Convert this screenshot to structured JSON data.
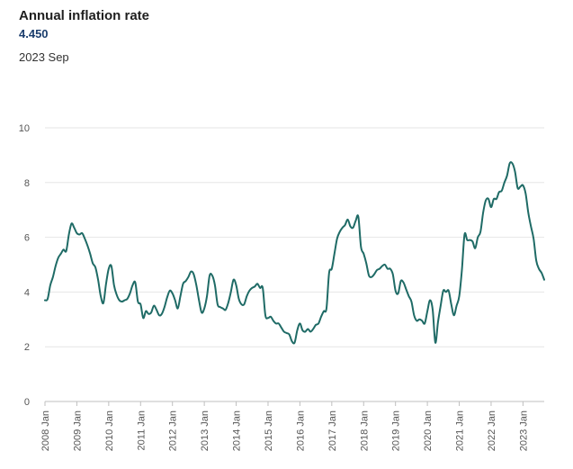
{
  "header": {
    "title": "Annual inflation rate",
    "value": "4.450",
    "date": "2023 Sep"
  },
  "colors": {
    "line": "#1f6b66",
    "grid": "#e6e6e6",
    "axis": "#bfbfbf"
  },
  "chart_data": {
    "type": "line",
    "title": "Annual inflation rate",
    "xlabel": "",
    "ylabel": "",
    "ylim": [
      0,
      10
    ],
    "yticks": [
      0,
      2,
      4,
      6,
      8,
      10
    ],
    "xticks": [
      "2008 Jan",
      "2009 Jan",
      "2010 Jan",
      "2011 Jan",
      "2012 Jan",
      "2013 Jan",
      "2014 Jan",
      "2015 Jan",
      "2016 Jan",
      "2017 Jan",
      "2018 Jan",
      "2019 Jan",
      "2020 Jan",
      "2021 Jan",
      "2022 Jan",
      "2023 Jan"
    ],
    "grid": true,
    "x_start": "2008 Jan",
    "x_end": "2023 Sep",
    "series": [
      {
        "values": [
          3.7,
          3.75,
          4.25,
          4.55,
          4.95,
          5.25,
          5.4,
          5.55,
          5.5,
          6.1,
          6.5,
          6.35,
          6.15,
          6.1,
          6.15,
          5.95,
          5.7,
          5.4,
          5.05,
          4.9,
          4.45,
          3.85,
          3.6,
          4.3,
          4.85,
          4.95,
          4.25,
          3.9,
          3.7,
          3.65,
          3.7,
          3.75,
          3.95,
          4.25,
          4.35,
          3.65,
          3.55,
          3.05,
          3.3,
          3.2,
          3.25,
          3.5,
          3.35,
          3.15,
          3.2,
          3.45,
          3.8,
          4.05,
          3.95,
          3.7,
          3.4,
          3.85,
          4.3,
          4.4,
          4.55,
          4.75,
          4.65,
          4.25,
          3.7,
          3.25,
          3.4,
          3.85,
          4.6,
          4.6,
          4.25,
          3.55,
          3.45,
          3.4,
          3.35,
          3.6,
          4.0,
          4.45,
          4.25,
          3.75,
          3.55,
          3.55,
          3.85,
          4.05,
          4.15,
          4.2,
          4.3,
          4.15,
          4.15,
          3.15,
          3.05,
          3.1,
          2.95,
          2.85,
          2.85,
          2.7,
          2.55,
          2.5,
          2.45,
          2.2,
          2.15,
          2.6,
          2.85,
          2.6,
          2.55,
          2.65,
          2.55,
          2.65,
          2.8,
          2.85,
          3.1,
          3.3,
          3.4,
          4.7,
          4.85,
          5.4,
          5.95,
          6.2,
          6.35,
          6.45,
          6.65,
          6.4,
          6.35,
          6.6,
          6.75,
          5.65,
          5.4,
          5.05,
          4.6,
          4.55,
          4.65,
          4.8,
          4.85,
          4.95,
          5.0,
          4.85,
          4.85,
          4.65,
          4.05,
          3.95,
          4.4,
          4.35,
          4.1,
          3.85,
          3.65,
          3.15,
          2.95,
          3.0,
          2.95,
          2.85,
          3.3,
          3.7,
          3.35,
          2.15,
          2.9,
          3.5,
          4.05,
          4.0,
          4.05,
          3.55,
          3.15,
          3.5,
          3.85,
          4.8,
          6.1,
          5.9,
          5.9,
          5.85,
          5.6,
          6.0,
          6.2,
          6.9,
          7.35,
          7.4,
          7.1,
          7.4,
          7.4,
          7.65,
          7.7,
          8.0,
          8.25,
          8.7,
          8.7,
          8.4,
          7.8,
          7.85,
          7.9,
          7.6,
          6.9,
          6.4,
          5.95,
          5.15,
          4.85,
          4.7,
          4.45
        ]
      }
    ]
  }
}
